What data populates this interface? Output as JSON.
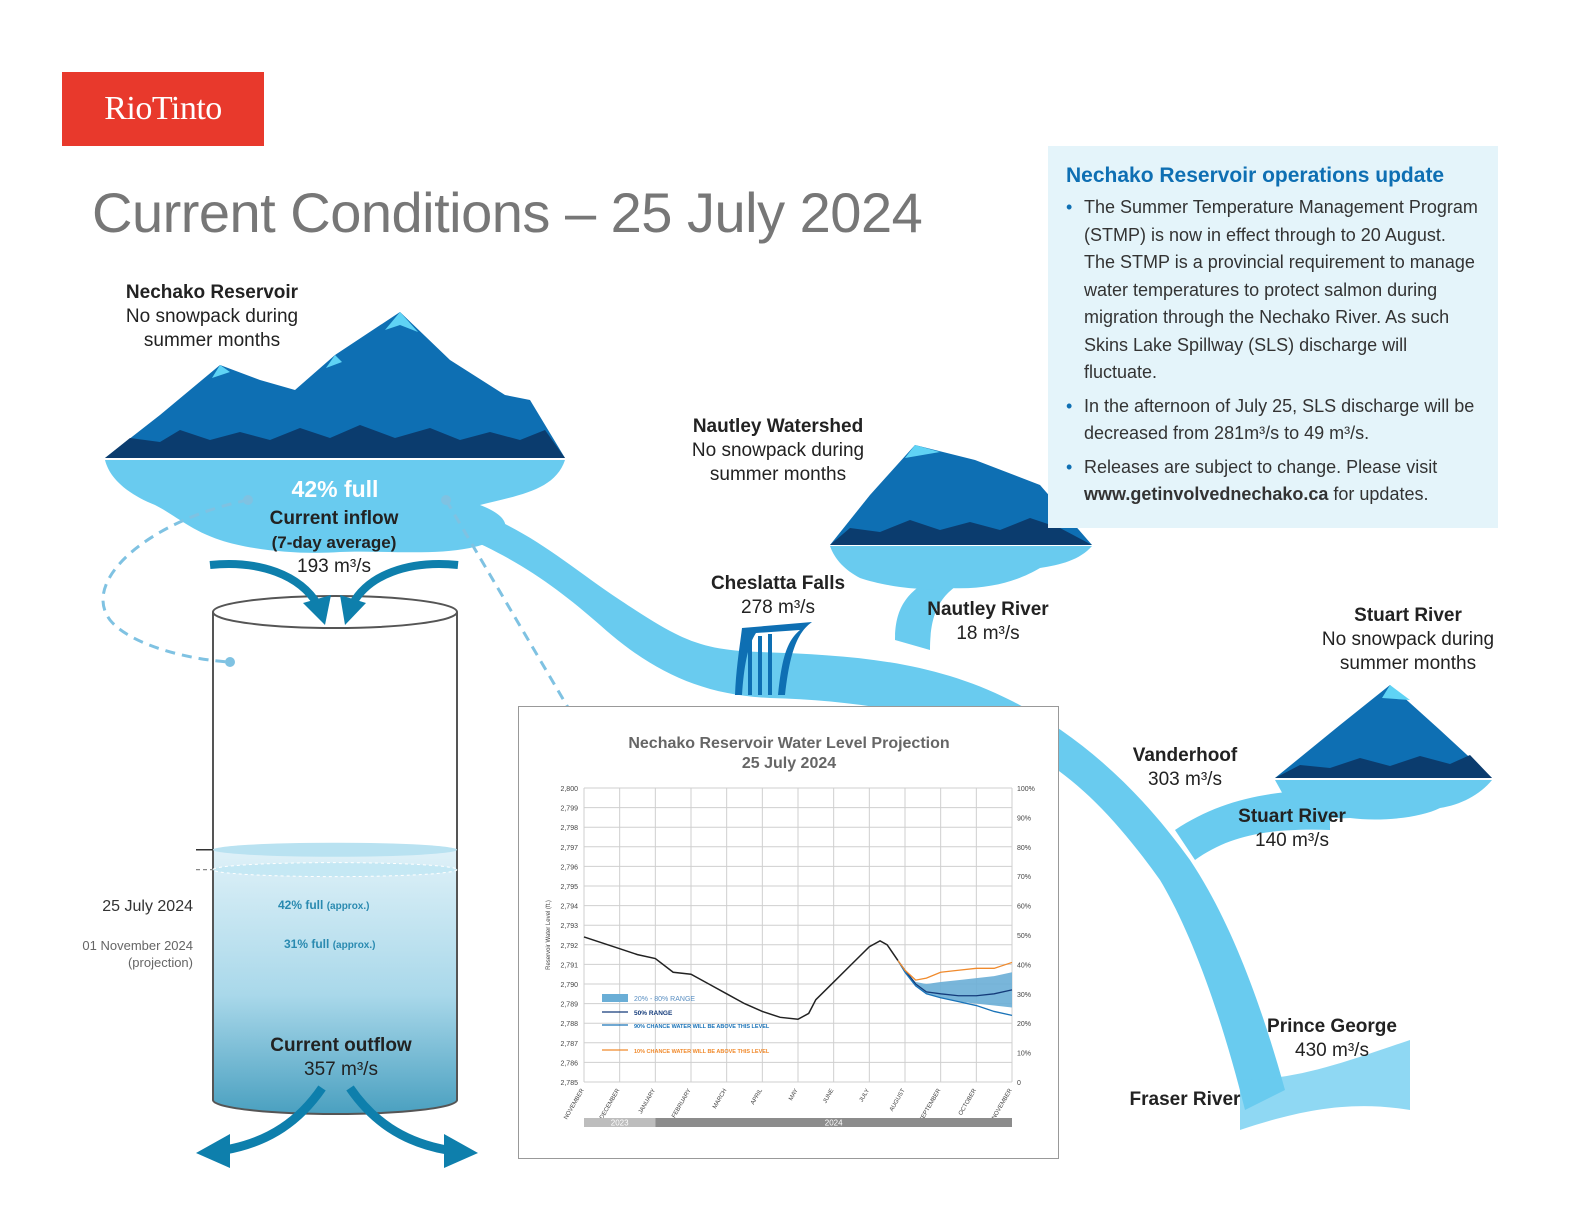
{
  "logo": "RioTinto",
  "title": "Current Conditions – 25 July 2024",
  "reservoir": {
    "name": "Nechako Reservoir",
    "note_line1": "No snowpack during",
    "note_line2": "summer months",
    "percent_full": "42% full"
  },
  "inflow": {
    "label_line1": "Current inflow",
    "label_line2": "(7-day average)",
    "value": "193 m³/s"
  },
  "outflow": {
    "label": "Current outflow",
    "value": "357 m³/s"
  },
  "levels": {
    "current_date": "25 July 2024",
    "current_label": "42% full",
    "current_suffix": "(approx.)",
    "current_fraction": 0.42,
    "projection_date": "01 November 2024",
    "projection_note": "(projection)",
    "projection_label": "31% full",
    "projection_suffix": "(approx.)",
    "projection_fraction": 0.31
  },
  "nautley_watershed": {
    "name": "Nautley Watershed",
    "note_line1": "No snowpack during",
    "note_line2": "summer months"
  },
  "cheslatta": {
    "name": "Cheslatta Falls",
    "value": "278 m³/s"
  },
  "nautley_river": {
    "name": "Nautley River",
    "value": "18 m³/s"
  },
  "stuart_watershed": {
    "name": "Stuart River",
    "note_line1": "No snowpack during",
    "note_line2": "summer months"
  },
  "vanderhoof": {
    "name": "Vanderhoof",
    "value": "303 m³/s"
  },
  "stuart_river": {
    "name": "Stuart River",
    "value": "140 m³/s"
  },
  "prince_george": {
    "name": "Prince George",
    "value": "430 m³/s"
  },
  "fraser": {
    "name": "Fraser River"
  },
  "update": {
    "heading": "Nechako Reservoir operations update",
    "bullet1": "The Summer Temperature Management Program (STMP) is now in effect through to 20 August. The STMP is a provincial requirement to manage water temperatures to protect salmon during migration through the Nechako River. As such Skins Lake Spillway (SLS) discharge will fluctuate.",
    "bullet2": "In the afternoon of July 25, SLS discharge will be decreased from 281m³/s to 49 m³/s.",
    "bullet3_pre": "Releases are subject to change. Please visit ",
    "bullet3_link": "www.getinvolvednechako.ca",
    "bullet3_post": " for updates."
  },
  "colors": {
    "brand_red": "#e8392c",
    "river": "#69cbef",
    "mountain": "#0e6fb3",
    "mountain_dark": "#0b3c6e",
    "heading_blue": "#0e6fb3"
  },
  "chart_data": {
    "type": "line",
    "title_line1": "Nechako Reservoir Water Level Projection",
    "title_line2": "25 July 2024",
    "ylabel": "Reservoir Water Level (ft.)",
    "ylim": [
      2785,
      2800
    ],
    "y_ticks": [
      "2,785",
      "2,786",
      "2,787",
      "2,788",
      "2,789",
      "2,790",
      "2,791",
      "2,792",
      "2,793",
      "2,794",
      "2,795",
      "2,796",
      "2,797",
      "2,798",
      "2,799",
      "2,800"
    ],
    "y2_ticks": [
      "0",
      "10%",
      "20%",
      "30%",
      "40%",
      "50%",
      "60%",
      "70%",
      "80%",
      "90%",
      "100%"
    ],
    "x_ticks": [
      "NOVEMBER",
      "DECEMBER",
      "JANUARY",
      "FEBRUARY",
      "MARCH",
      "APRIL",
      "MAY",
      "JUNE",
      "JULY",
      "AUGUST",
      "SEPTEMBER",
      "OCTOBER",
      "NOVEMBER"
    ],
    "year_labels": [
      "2023",
      "2024"
    ],
    "legend": [
      "20% - 80% RANGE",
      "50% RANGE",
      "90% CHANCE WATER WILL BE ABOVE THIS LEVEL",
      "10% CHANCE WATER WILL BE ABOVE THIS LEVEL"
    ],
    "historical": {
      "x": [
        0,
        0.5,
        1,
        1.5,
        2,
        2.5,
        3,
        3.5,
        4,
        4.5,
        5,
        5.5,
        6,
        6.3,
        6.5,
        7,
        7.5,
        8,
        8.3,
        8.5,
        8.8
      ],
      "y": [
        2792.4,
        2792.1,
        2791.8,
        2791.5,
        2791.3,
        2790.6,
        2790.5,
        2790.0,
        2789.5,
        2789.0,
        2788.6,
        2788.3,
        2788.2,
        2788.5,
        2789.2,
        2790.1,
        2791.0,
        2791.9,
        2792.2,
        2792.0,
        2791.2
      ]
    },
    "series": [
      {
        "name": "50% RANGE",
        "x": [
          8.8,
          9,
          9.3,
          9.6,
          10,
          10.5,
          11,
          11.5,
          12
        ],
        "y": [
          2791.2,
          2790.7,
          2790.0,
          2789.6,
          2789.5,
          2789.4,
          2789.4,
          2789.5,
          2789.7
        ]
      },
      {
        "name": "90% CHANCE WATER WILL BE ABOVE THIS LEVEL",
        "x": [
          8.8,
          9,
          9.3,
          9.6,
          10,
          10.5,
          11,
          11.5,
          12
        ],
        "y": [
          2791.2,
          2790.6,
          2789.9,
          2789.5,
          2789.3,
          2789.1,
          2788.9,
          2788.6,
          2788.4
        ]
      },
      {
        "name": "10% CHANCE WATER WILL BE ABOVE THIS LEVEL",
        "x": [
          8.8,
          9,
          9.3,
          9.6,
          10,
          10.5,
          11,
          11.5,
          12
        ],
        "y": [
          2791.2,
          2790.7,
          2790.2,
          2790.3,
          2790.6,
          2790.7,
          2790.8,
          2790.8,
          2791.1
        ]
      }
    ],
    "band": {
      "name": "20% - 80% RANGE",
      "x": [
        8.8,
        9,
        9.3,
        9.6,
        10,
        10.5,
        11,
        11.5,
        12
      ],
      "low": [
        2791.2,
        2790.6,
        2789.9,
        2789.5,
        2789.3,
        2789.1,
        2789.0,
        2788.9,
        2788.8
      ],
      "high": [
        2791.2,
        2790.7,
        2790.1,
        2790.0,
        2790.1,
        2790.2,
        2790.3,
        2790.4,
        2790.6
      ]
    }
  }
}
